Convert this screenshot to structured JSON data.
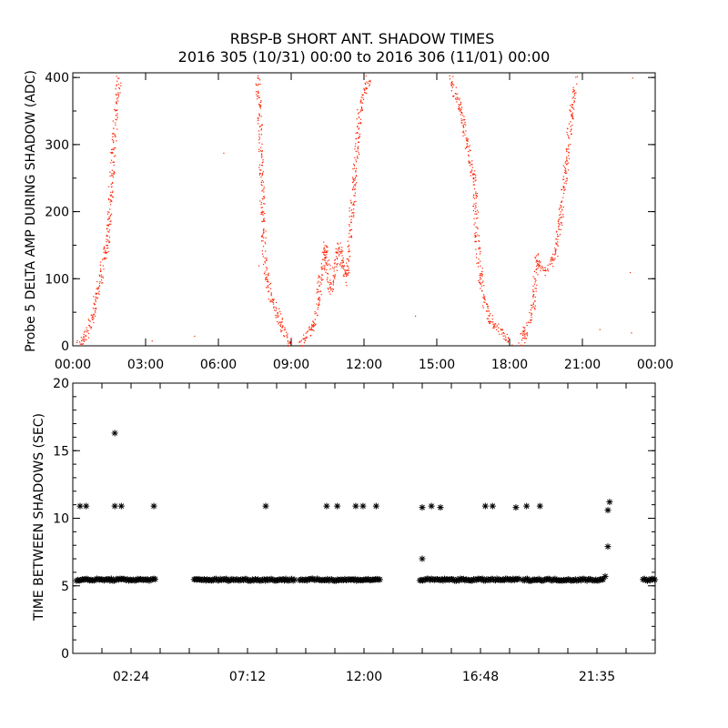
{
  "title": "RBSP-B SHORT ANT. SHADOW TIMES",
  "subtitle": "2016 305 (10/31) 00:00 to 2016 306 (11/01) 00:00",
  "colors": {
    "amp": "#ff2000",
    "interval": "#000000",
    "axis": "#000000"
  },
  "chart_data": [
    {
      "type": "scatter",
      "name": "delta-amp",
      "xlabel": "",
      "ylabel": "Probe 5 DELTA AMP DURING SHADOW (ADC)",
      "xlim_hours": [
        0,
        24
      ],
      "ylim": [
        0,
        407
      ],
      "x_tick_labels": [
        "00:00",
        "03:00",
        "06:00",
        "09:00",
        "12:00",
        "15:00",
        "18:00",
        "21:00",
        "00:00"
      ],
      "x_tick_hours": [
        0,
        3,
        6,
        9,
        12,
        15,
        18,
        21,
        24
      ],
      "y_ticks": [
        0,
        100,
        200,
        300,
        400
      ],
      "series_traces_hours_value": [
        [
          [
            0.19,
            0
          ],
          [
            0.5,
            15
          ],
          [
            0.75,
            40
          ],
          [
            1.0,
            80
          ],
          [
            1.13,
            100
          ],
          [
            1.43,
            160
          ],
          [
            1.58,
            250
          ],
          [
            1.76,
            350
          ],
          [
            1.88,
            400
          ]
        ],
        [
          [
            7.6,
            400
          ],
          [
            7.7,
            340
          ],
          [
            7.8,
            200
          ],
          [
            7.9,
            120
          ],
          [
            8.1,
            80
          ],
          [
            8.5,
            40
          ],
          [
            8.75,
            15
          ],
          [
            9.0,
            0
          ]
        ],
        [
          [
            9.3,
            0
          ],
          [
            9.6,
            15
          ],
          [
            9.94,
            30
          ],
          [
            10.2,
            100
          ],
          [
            10.39,
            150
          ],
          [
            10.6,
            80
          ],
          [
            10.95,
            150
          ],
          [
            11.25,
            100
          ],
          [
            11.6,
            250
          ],
          [
            11.8,
            350
          ],
          [
            12.19,
            400
          ]
        ],
        [
          [
            15.56,
            400
          ],
          [
            15.9,
            360
          ],
          [
            16.1,
            330
          ],
          [
            16.5,
            250
          ],
          [
            16.7,
            130
          ],
          [
            16.9,
            70
          ],
          [
            17.25,
            35
          ],
          [
            17.8,
            15
          ],
          [
            18.0,
            0
          ]
        ],
        [
          [
            18.4,
            0
          ],
          [
            18.94,
            50
          ],
          [
            19.1,
            130
          ],
          [
            19.5,
            110
          ],
          [
            19.9,
            140
          ],
          [
            20.25,
            250
          ],
          [
            20.55,
            350
          ],
          [
            20.7,
            400
          ]
        ]
      ],
      "isolated_points": [
        [
          3.25,
          8
        ],
        [
          5.0,
          15
        ],
        [
          6.2,
          288
        ],
        [
          7.65,
          120
        ],
        [
          14.1,
          45
        ],
        [
          21.7,
          25
        ],
        [
          22.95,
          110
        ],
        [
          23.0,
          20
        ],
        [
          23.05,
          400
        ]
      ]
    },
    {
      "type": "scatter",
      "name": "time-between-shadows",
      "xlabel": "",
      "ylabel": "TIME BETWEEN SHADOWS (SEC)",
      "xlim_hours": [
        0,
        24
      ],
      "ylim": [
        0,
        20
      ],
      "x_tick_labels": [
        "02:24",
        "07:12",
        "12:00",
        "16:48",
        "21:35"
      ],
      "x_tick_hours": [
        2.4,
        7.2,
        12.0,
        16.8,
        21.6
      ],
      "y_ticks": [
        0,
        5,
        10,
        15,
        20
      ],
      "bands_hours_at_5_5": [
        [
          0.15,
          3.45
        ],
        [
          5.0,
          9.15
        ],
        [
          9.35,
          12.7
        ],
        [
          14.3,
          18.4
        ],
        [
          18.55,
          21.85
        ],
        [
          23.5,
          24.0
        ]
      ],
      "outliers_hours_value": [
        [
          0.3,
          10.9
        ],
        [
          0.55,
          10.9
        ],
        [
          1.73,
          10.9
        ],
        [
          2.0,
          10.9
        ],
        [
          1.73,
          16.3
        ],
        [
          3.34,
          10.9
        ],
        [
          7.95,
          10.9
        ],
        [
          10.46,
          10.9
        ],
        [
          10.9,
          10.9
        ],
        [
          11.66,
          10.9
        ],
        [
          11.96,
          10.9
        ],
        [
          12.5,
          10.9
        ],
        [
          14.4,
          10.8
        ],
        [
          14.78,
          10.9
        ],
        [
          15.15,
          10.8
        ],
        [
          17.0,
          10.9
        ],
        [
          17.3,
          10.9
        ],
        [
          18.26,
          10.8
        ],
        [
          18.7,
          10.9
        ],
        [
          19.25,
          10.9
        ],
        [
          14.4,
          7.0
        ],
        [
          21.94,
          5.7
        ],
        [
          22.05,
          10.6
        ],
        [
          22.12,
          11.2
        ],
        [
          22.05,
          7.9
        ]
      ]
    }
  ]
}
